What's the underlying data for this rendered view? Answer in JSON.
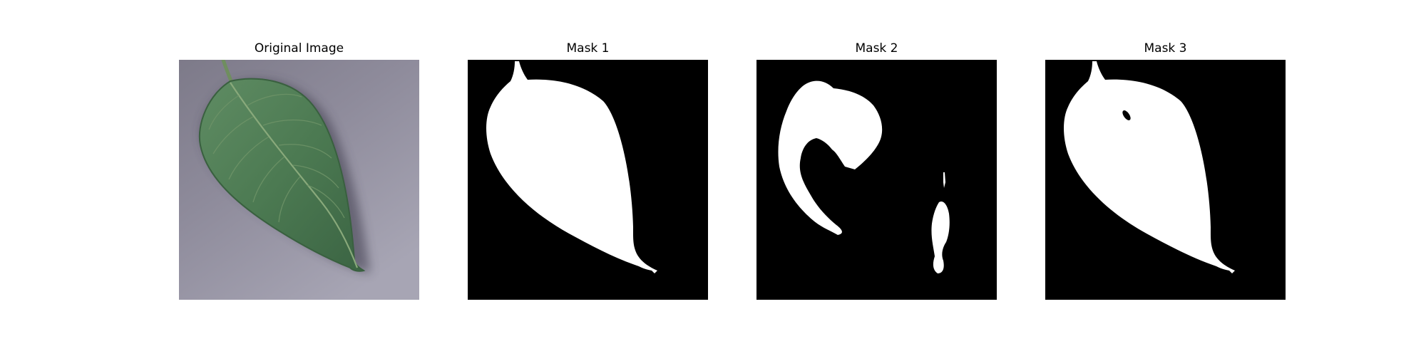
{
  "figure": {
    "panels": [
      {
        "title": "Original Image",
        "image": "leaf-photo"
      },
      {
        "title": "Mask 1",
        "image": "binary-mask"
      },
      {
        "title": "Mask 2",
        "image": "binary-mask"
      },
      {
        "title": "Mask 3",
        "image": "binary-mask"
      }
    ]
  },
  "colors": {
    "background": "#ffffff",
    "mask_foreground": "#ffffff",
    "mask_background": "#000000",
    "leaf_green": "#4d7a50",
    "surface_gray": "#8f8c9c"
  }
}
